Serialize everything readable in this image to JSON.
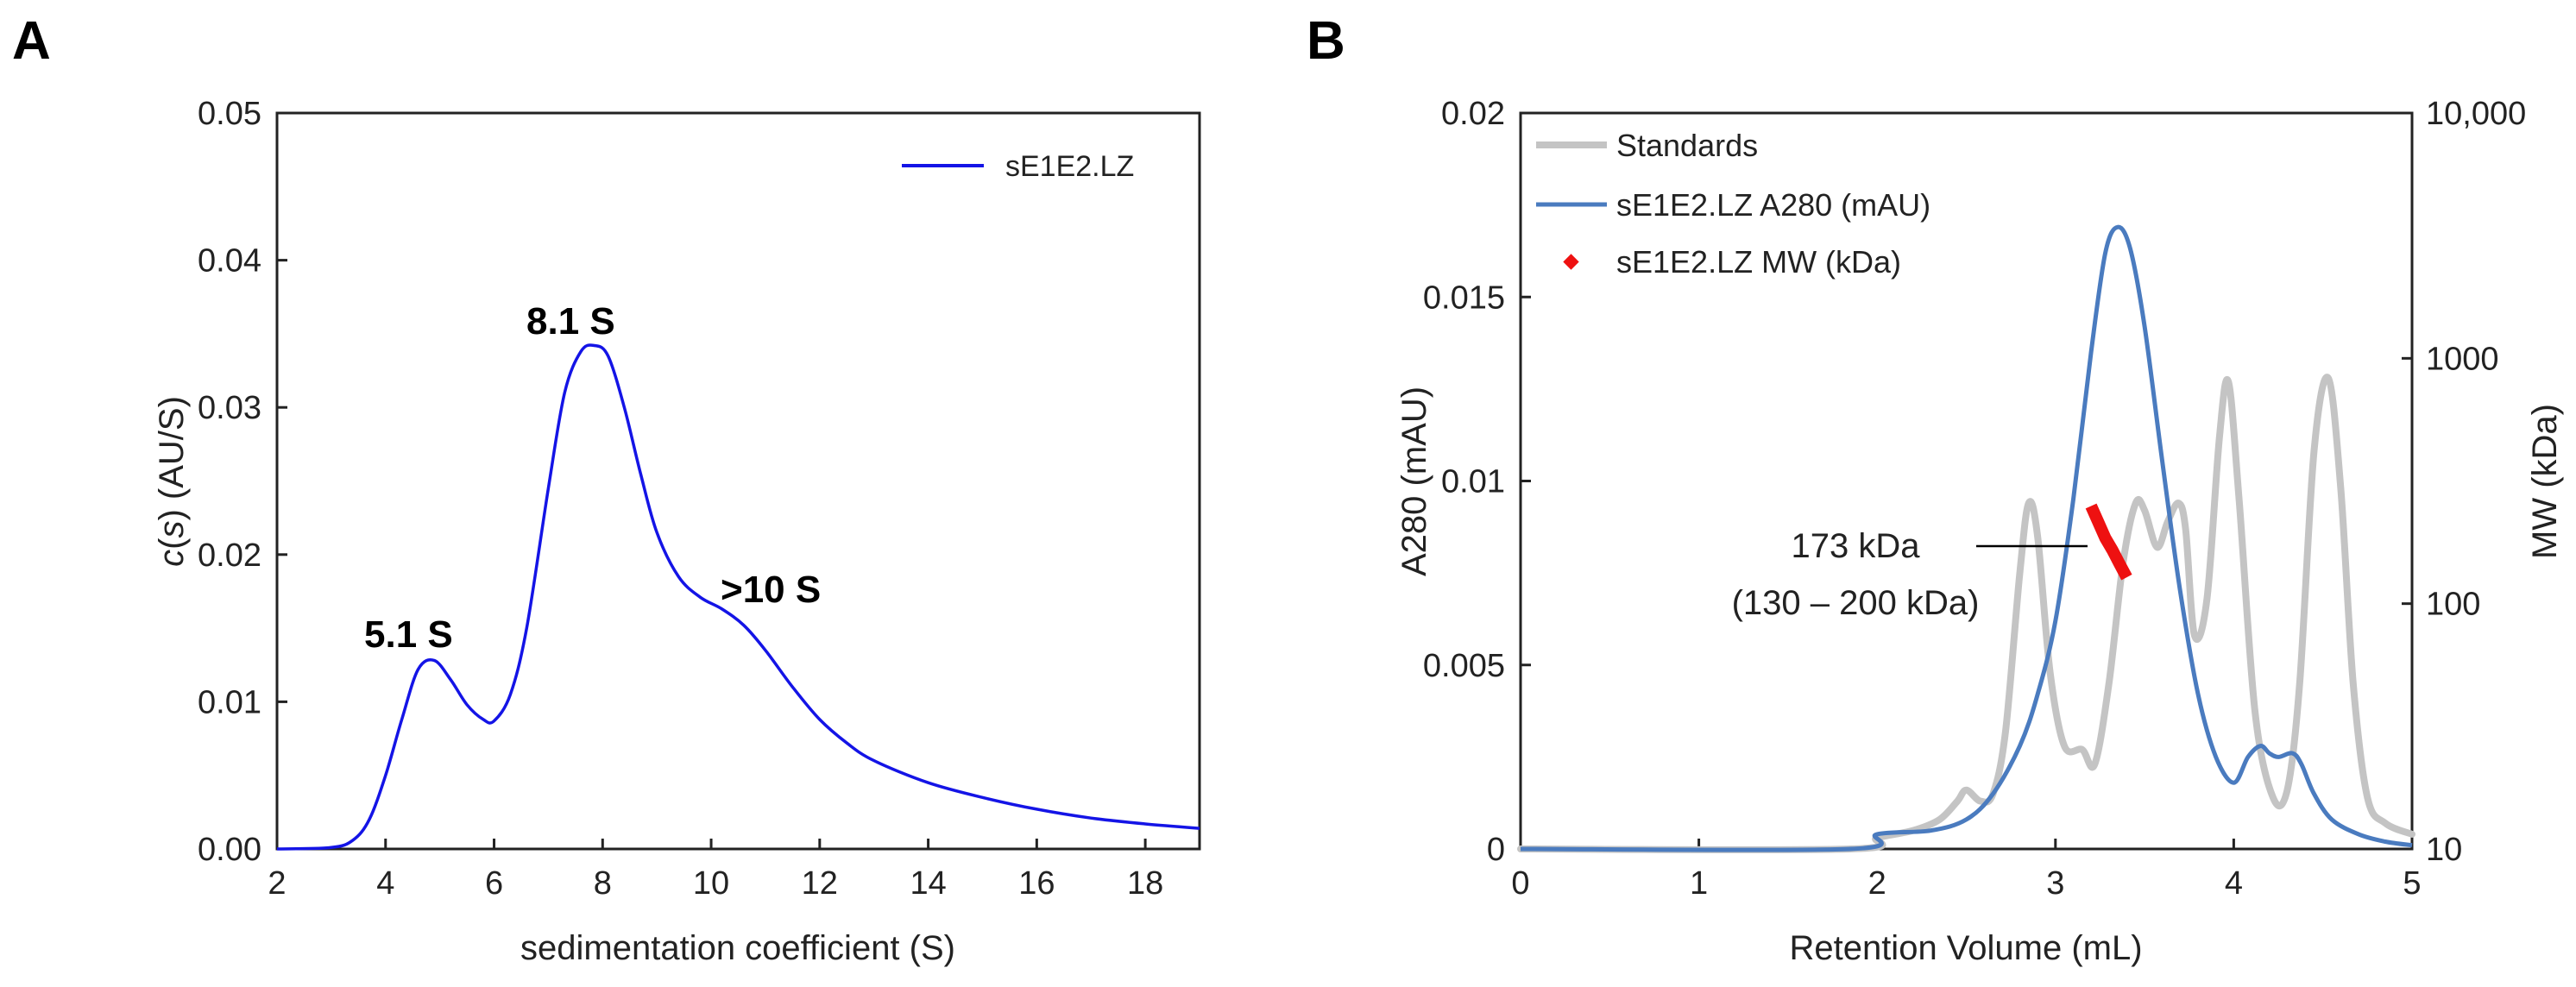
{
  "panels": {
    "a": {
      "letter": "A"
    },
    "b": {
      "letter": "B"
    }
  },
  "chart_data": [
    {
      "type": "line",
      "panel": "A",
      "xlabel_pre": "",
      "xlabel": "sedimentation coefficient (S)",
      "ylabel_italic": "c",
      "ylabel_open": "(",
      "ylabel_var": "s",
      "ylabel_close": ") (AU/S)",
      "xlim": [
        2,
        19
      ],
      "ylim": [
        0,
        0.05
      ],
      "xticks": [
        "2",
        "4",
        "6",
        "8",
        "10",
        "12",
        "14",
        "16",
        "18"
      ],
      "xtick_values": [
        2,
        4,
        6,
        8,
        10,
        12,
        14,
        16,
        18
      ],
      "yticks": [
        "0.00",
        "0.01",
        "0.02",
        "0.03",
        "0.04",
        "0.05"
      ],
      "ytick_values": [
        0,
        0.01,
        0.02,
        0.03,
        0.04,
        0.05
      ],
      "legend": [
        "sE1E2.LZ"
      ],
      "colors": {
        "series": "#1414e6",
        "axis": "#222222"
      },
      "series": [
        {
          "name": "sE1E2.LZ",
          "x": [
            2.0,
            3.0,
            3.4,
            3.7,
            4.0,
            4.3,
            4.6,
            4.9,
            5.2,
            5.5,
            5.8,
            6.0,
            6.3,
            6.6,
            7.0,
            7.3,
            7.6,
            7.85,
            8.1,
            8.4,
            8.7,
            9.0,
            9.4,
            9.8,
            10.2,
            10.6,
            11.0,
            11.5,
            12.0,
            12.5,
            13.0,
            14.0,
            15.0,
            16.0,
            17.0,
            18.0,
            19.0
          ],
          "y": [
            0.0,
            0.0001,
            0.0006,
            0.002,
            0.005,
            0.0088,
            0.0122,
            0.0128,
            0.0115,
            0.0098,
            0.0088,
            0.0087,
            0.0105,
            0.015,
            0.0245,
            0.031,
            0.0338,
            0.0342,
            0.0335,
            0.03,
            0.0255,
            0.0215,
            0.0185,
            0.0171,
            0.0163,
            0.0152,
            0.0135,
            0.011,
            0.0088,
            0.0072,
            0.006,
            0.0045,
            0.0035,
            0.0027,
            0.0021,
            0.0017,
            0.0014
          ]
        }
      ],
      "annotations": [
        {
          "text": "5.1 S",
          "x": 4.9,
          "y": 0.0128
        },
        {
          "text": "8.1 S",
          "x": 7.85,
          "y": 0.0342
        },
        {
          "text": ">10 S",
          "x": 10.2,
          "y": 0.0163
        }
      ]
    },
    {
      "type": "line",
      "panel": "B",
      "xlabel": "Retention Volume (mL)",
      "ylabel": "A280 (mAU)",
      "y2label": "MW (kDa)",
      "xlim": [
        0,
        5
      ],
      "ylim": [
        0,
        0.02
      ],
      "y2lim_log": [
        10,
        10000
      ],
      "xticks": [
        "0",
        "1",
        "2",
        "3",
        "4",
        "5"
      ],
      "xtick_values": [
        0,
        1,
        2,
        3,
        4,
        5
      ],
      "yticks": [
        "0",
        "0.005",
        "0.01",
        "0.015",
        "0.02"
      ],
      "ytick_values": [
        0,
        0.005,
        0.01,
        0.015,
        0.02
      ],
      "y2ticks": [
        "10",
        "100",
        "1000",
        "10,000"
      ],
      "y2tick_values": [
        10,
        100,
        1000,
        10000
      ],
      "legend": [
        "Standards",
        "sE1E2.LZ A280 (mAU)",
        "sE1E2.LZ MW (kDa)"
      ],
      "colors": {
        "standards": "#c4c4c4",
        "a280": "#4a7bbf",
        "mw": "#ee1111",
        "axis": "#222222"
      },
      "series": [
        {
          "name": "Standards",
          "x": [
            0,
            1.85,
            2.0,
            2.2,
            2.35,
            2.45,
            2.5,
            2.58,
            2.65,
            2.72,
            2.8,
            2.85,
            2.9,
            2.97,
            3.05,
            3.15,
            3.22,
            3.3,
            3.38,
            3.45,
            3.5,
            3.57,
            3.63,
            3.69,
            3.73,
            3.78,
            3.85,
            3.92,
            3.97,
            4.03,
            4.12,
            4.22,
            4.3,
            4.37,
            4.45,
            4.53,
            4.6,
            4.67,
            4.75,
            4.85,
            5.0
          ],
          "y": [
            0,
            0,
            0.0003,
            0.0005,
            0.0008,
            0.0013,
            0.0016,
            0.0013,
            0.0015,
            0.0032,
            0.0075,
            0.0094,
            0.0085,
            0.0048,
            0.0028,
            0.0027,
            0.0023,
            0.0045,
            0.0078,
            0.0094,
            0.0092,
            0.0082,
            0.0089,
            0.0094,
            0.0087,
            0.0058,
            0.0068,
            0.0112,
            0.0127,
            0.0095,
            0.0037,
            0.0014,
            0.0016,
            0.0045,
            0.0108,
            0.0128,
            0.0098,
            0.0045,
            0.0014,
            0.0007,
            0.0004
          ]
        },
        {
          "name": "sE1E2.LZ A280 (mAU)",
          "x": [
            0,
            1.85,
            2.0,
            2.3,
            2.5,
            2.65,
            2.8,
            2.9,
            3.0,
            3.1,
            3.2,
            3.28,
            3.35,
            3.42,
            3.5,
            3.6,
            3.7,
            3.8,
            3.9,
            4.0,
            4.08,
            4.15,
            4.2,
            4.25,
            4.33,
            4.38,
            4.45,
            4.55,
            4.7,
            4.85,
            5.0
          ],
          "y": [
            0,
            0,
            0.0004,
            0.0005,
            0.0008,
            0.0015,
            0.0028,
            0.0042,
            0.0062,
            0.0095,
            0.0135,
            0.0162,
            0.0169,
            0.0163,
            0.0142,
            0.0105,
            0.007,
            0.0042,
            0.0025,
            0.0018,
            0.0025,
            0.0028,
            0.0026,
            0.0025,
            0.0026,
            0.0023,
            0.0015,
            0.0008,
            0.0004,
            0.0002,
            0.0001
          ]
        },
        {
          "name": "sE1E2.LZ MW (kDa)",
          "x": [
            3.2,
            3.24,
            3.28,
            3.32,
            3.36,
            3.4
          ],
          "mw": [
            250,
            215,
            185,
            165,
            145,
            128
          ]
        }
      ],
      "annotation": {
        "line1": "173 kDa",
        "line2": "(130 – 200 kDa)",
        "target_x": 3.18,
        "target_mw": 173
      }
    }
  ]
}
